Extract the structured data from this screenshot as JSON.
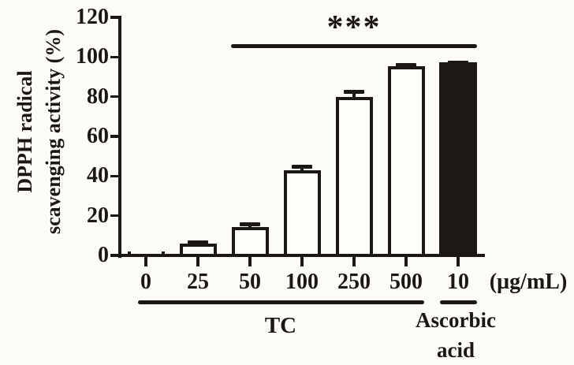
{
  "figure": {
    "kind": "scientific-bar-chart",
    "y_axis_label_line1": "DPPH radical",
    "y_axis_label_line2": "scavenging activity (%)",
    "x_unit_label": "(µg/mL)",
    "significance_label": "***",
    "group_tc_label": "TC",
    "group_aa_label_line1": "Ascorbic",
    "group_aa_label_line2": "acid"
  },
  "colors": {
    "ink": "#1b1813",
    "background": "#fcfbf7",
    "bar_fill_open": "#fdfdfa",
    "bar_fill_solid": "#1b1813"
  },
  "chart_data": {
    "type": "bar",
    "title": "",
    "xlabel": "(µg/mL)",
    "ylabel": "DPPH radical scavenging activity (%)",
    "ylim": [
      0,
      120
    ],
    "yticks": [
      0,
      20,
      40,
      60,
      80,
      100,
      120
    ],
    "grid": false,
    "legend": "none",
    "categories": [
      "0",
      "25",
      "50",
      "100",
      "250",
      "500",
      "10"
    ],
    "values": [
      0.5,
      6,
      14.5,
      43,
      80,
      95.5,
      97.5
    ],
    "errors": [
      0,
      1.5,
      2,
      2.5,
      3.5,
      1.5,
      0.5
    ],
    "bar_styles": [
      "open",
      "open",
      "open",
      "open",
      "open",
      "open",
      "solid"
    ],
    "groups": [
      {
        "label": "TC",
        "from_index": 0,
        "to_index": 5
      },
      {
        "label": "Ascorbic acid",
        "from_index": 6,
        "to_index": 6
      }
    ],
    "significance": {
      "label": "***",
      "from_category": "50",
      "to_category": "10",
      "spans_indices": [
        2,
        6
      ],
      "note": "bracket above bars 50–500 µg/mL TC and ascorbic acid"
    }
  }
}
